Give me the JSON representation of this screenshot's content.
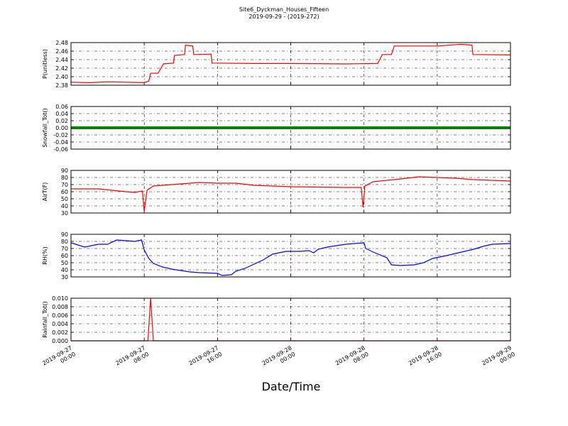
{
  "chart_data": [
    {
      "type": "line",
      "title": "Site6_Dyckman_Houses_Fifteen",
      "subtitle": "2019-09-29 - (2019-272)",
      "ylabel": "P(unitless)",
      "color": "#ff0000",
      "x": [
        "2019-09-27 00:00",
        "2019-09-27 02:00",
        "2019-09-27 04:00",
        "2019-09-27 06:00",
        "2019-09-27 08:00",
        "2019-09-27 08:30",
        "2019-09-27 08:42",
        "2019-09-27 09:30",
        "2019-09-27 10:06",
        "2019-09-27 11:12",
        "2019-09-27 11:18",
        "2019-09-27 12:24",
        "2019-09-27 12:30",
        "2019-09-27 13:18",
        "2019-09-27 13:24",
        "2019-09-27 15:18",
        "2019-09-27 15:24",
        "2019-09-27 20:00",
        "2019-09-28 00:00",
        "2019-09-28 06:00",
        "2019-09-28 09:30",
        "2019-09-28 10:00",
        "2019-09-28 11:00",
        "2019-09-28 11:18",
        "2019-09-28 16:00",
        "2019-09-28 18:36",
        "2019-09-28 19:48",
        "2019-09-28 19:54",
        "2019-09-29 00:00"
      ],
      "values": [
        2.387,
        2.386,
        2.388,
        2.387,
        2.386,
        2.39,
        2.408,
        2.408,
        2.43,
        2.432,
        2.45,
        2.452,
        2.474,
        2.472,
        2.452,
        2.453,
        2.432,
        2.431,
        2.431,
        2.43,
        2.431,
        2.452,
        2.452,
        2.472,
        2.472,
        2.476,
        2.474,
        2.452,
        2.451
      ],
      "ylim": [
        2.38,
        2.48
      ],
      "yticks": [
        2.38,
        {
          "value": 2.4,
          "label": "2.40"
        },
        2.42,
        2.44,
        2.46,
        2.48
      ],
      "grid": true
    },
    {
      "type": "line",
      "ylabel": "Snowfall_Tot()",
      "color": "#008000",
      "x": [
        "2019-09-27 00:00",
        "2019-09-27 04:00",
        "2019-09-27 08:00",
        "2019-09-27 12:00",
        "2019-09-27 16:00",
        "2019-09-27 20:00",
        "2019-09-28 00:00",
        "2019-09-28 04:00",
        "2019-09-28 08:00",
        "2019-09-28 12:00",
        "2019-09-28 16:00",
        "2019-09-28 20:00",
        "2019-09-29 00:00"
      ],
      "values": [
        0,
        0,
        0,
        0,
        0,
        0,
        0,
        0,
        0,
        0,
        0,
        0,
        0
      ],
      "ylim": [
        -0.06,
        0.06
      ],
      "yticks": [
        -0.06,
        -0.04,
        -0.02,
        {
          "value": 0,
          "label": "0.00"
        },
        0.02,
        0.04,
        0.06
      ],
      "grid": true
    },
    {
      "type": "line",
      "ylabel": "AirT(F)",
      "color": "#ff0000",
      "x": [
        "2019-09-27 00:00",
        "2019-09-27 03:00",
        "2019-09-27 06:00",
        "2019-09-27 07:00",
        "2019-09-27 07:48",
        "2019-09-27 08:00",
        "2019-09-27 08:18",
        "2019-09-27 09:00",
        "2019-09-27 10:00",
        "2019-09-27 12:00",
        "2019-09-27 14:00",
        "2019-09-27 16:00",
        "2019-09-27 18:00",
        "2019-09-27 20:00",
        "2019-09-28 00:00",
        "2019-09-28 06:00",
        "2019-09-28 07:42",
        "2019-09-28 07:54",
        "2019-09-28 08:06",
        "2019-09-28 09:00",
        "2019-09-28 12:00",
        "2019-09-28 14:00",
        "2019-09-28 16:00",
        "2019-09-28 18:00",
        "2019-09-28 20:00",
        "2019-09-29 00:00"
      ],
      "values": [
        64,
        64,
        60,
        59,
        61,
        32,
        62,
        68,
        69,
        71,
        73,
        72,
        72,
        69,
        67,
        66,
        66,
        38,
        68,
        74,
        78,
        81,
        80,
        79,
        77,
        75
      ],
      "ylim": [
        30,
        90
      ],
      "yticks": [
        30,
        40,
        50,
        60,
        70,
        80,
        90
      ],
      "grid": true
    },
    {
      "type": "line",
      "ylabel": "RH(%)",
      "color": "#0000ff",
      "x": [
        "2019-09-27 00:00",
        "2019-09-27 01:30",
        "2019-09-27 03:00",
        "2019-09-27 04:00",
        "2019-09-27 05:00",
        "2019-09-27 06:00",
        "2019-09-27 07:00",
        "2019-09-27 07:42",
        "2019-09-27 08:00",
        "2019-09-27 08:30",
        "2019-09-27 09:00",
        "2019-09-27 10:00",
        "2019-09-27 11:00",
        "2019-09-27 12:00",
        "2019-09-27 13:00",
        "2019-09-27 14:00",
        "2019-09-27 16:00",
        "2019-09-27 16:30",
        "2019-09-27 17:30",
        "2019-09-27 18:00",
        "2019-09-27 19:00",
        "2019-09-27 20:00",
        "2019-09-27 21:00",
        "2019-09-27 22:00",
        "2019-09-27 23:30",
        "2019-09-28 01:00",
        "2019-09-28 02:00",
        "2019-09-28 02:30",
        "2019-09-28 03:00",
        "2019-09-28 04:00",
        "2019-09-28 06:00",
        "2019-09-28 08:00",
        "2019-09-28 08:12",
        "2019-09-28 09:00",
        "2019-09-28 10:30",
        "2019-09-28 11:00",
        "2019-09-28 12:00",
        "2019-09-28 13:30",
        "2019-09-28 14:30",
        "2019-09-28 15:30",
        "2019-09-28 17:00",
        "2019-09-28 18:00",
        "2019-09-28 20:00",
        "2019-09-28 21:00",
        "2019-09-28 22:00",
        "2019-09-29 00:00"
      ],
      "values": [
        78,
        72,
        76,
        76,
        82,
        81,
        80,
        82,
        68,
        56,
        49,
        44,
        41,
        39,
        37,
        36,
        35,
        32,
        33,
        38,
        42,
        48,
        54,
        62,
        66,
        66,
        67,
        64,
        69,
        72,
        76,
        78,
        70,
        65,
        57,
        47,
        46,
        47,
        50,
        56,
        60,
        63,
        69,
        73,
        76,
        77
      ],
      "ylim": [
        30,
        90
      ],
      "yticks": [
        30,
        40,
        50,
        60,
        70,
        80,
        90
      ],
      "grid": true
    },
    {
      "type": "line",
      "ylabel": "Rainfall_Tot()",
      "xlabel": "Date/Time",
      "color": "#ff0000",
      "x": [
        "2019-09-27 00:00",
        "2019-09-27 08:24",
        "2019-09-27 08:42",
        "2019-09-27 09:00",
        "2019-09-29 00:00"
      ],
      "values": [
        0,
        0,
        0.01,
        0,
        0
      ],
      "ylim": [
        0,
        0.01
      ],
      "yticks": [
        {
          "value": 0,
          "label": "0.000"
        },
        {
          "value": 0.002,
          "label": "0.002"
        },
        {
          "value": 0.004,
          "label": "0.004"
        },
        {
          "value": 0.006,
          "label": "0.006"
        },
        {
          "value": 0.008,
          "label": "0.008"
        },
        {
          "value": 0.01,
          "label": "0.010"
        }
      ],
      "grid": true,
      "xlim": [
        "2019-09-27 00:00",
        "2019-09-29 00:00"
      ],
      "xticks": [
        "2019-09-27 00:00",
        "2019-09-27 08:00",
        "2019-09-27 16:00",
        "2019-09-28 00:00",
        "2019-09-28 08:00",
        "2019-09-28 16:00",
        "2019-09-29 00:00"
      ]
    }
  ]
}
